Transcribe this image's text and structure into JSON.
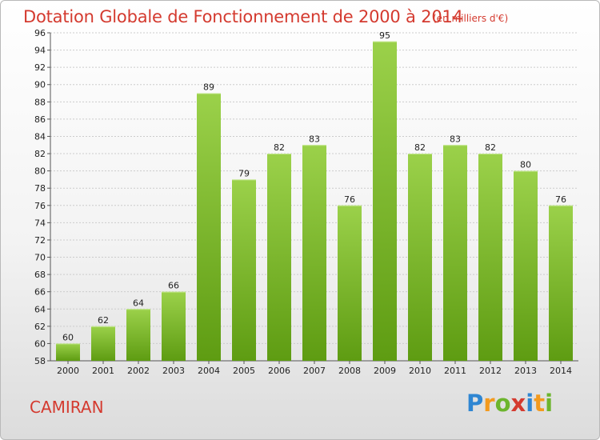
{
  "header": {
    "title": "Dotation Globale de Fonctionnement de 2000 à 2014",
    "subtitle": "(en milliers d'€)"
  },
  "footer": {
    "commune": "CAMIRAN",
    "logo_letters": [
      {
        "ch": "P",
        "color": "#2f86d2"
      },
      {
        "ch": "r",
        "color": "#f39a1e"
      },
      {
        "ch": "o",
        "color": "#6cb52d"
      },
      {
        "ch": "x",
        "color": "#d43a2f"
      },
      {
        "ch": "i",
        "color": "#2f86d2"
      },
      {
        "ch": "t",
        "color": "#f39a1e"
      },
      {
        "ch": "i",
        "color": "#6cb52d"
      }
    ]
  },
  "colors": {
    "accent": "#d43a2f",
    "bar_top": "#9bd14a",
    "bar_bottom": "#5e9c12",
    "grid": "#cccccc"
  },
  "chart_data": {
    "type": "bar",
    "categories": [
      "2000",
      "2001",
      "2002",
      "2003",
      "2004",
      "2005",
      "2006",
      "2007",
      "2008",
      "2009",
      "2010",
      "2011",
      "2012",
      "2013",
      "2014"
    ],
    "values": [
      60,
      62,
      64,
      66,
      89,
      79,
      82,
      83,
      76,
      95,
      82,
      83,
      82,
      80,
      76
    ],
    "ylim": [
      58,
      96
    ],
    "ytick_step": 2,
    "grid": true,
    "data_labels": true
  }
}
